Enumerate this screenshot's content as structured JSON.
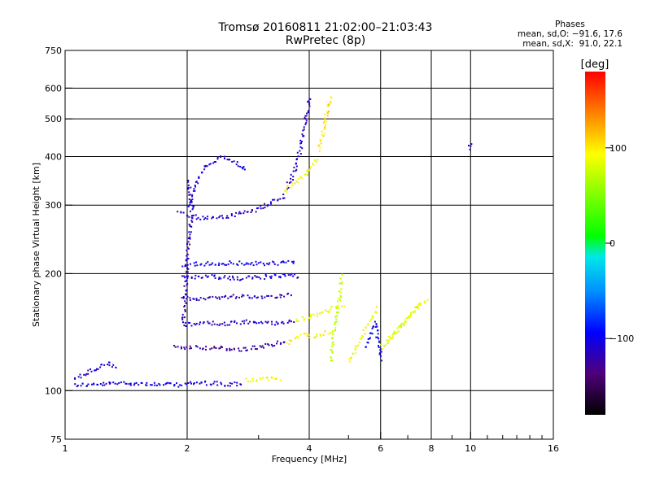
{
  "chart_data": {
    "type": "scatter",
    "title": "Tromsø 20160811 21:02:00–21:03:43",
    "subtitle": "RwPretec (8p)",
    "xlabel": "Frequency [MHz]",
    "ylabel": "Stationary phase Virtual Height [km]",
    "x_scale": "log",
    "y_scale": "log",
    "xlim": [
      1,
      16
    ],
    "ylim": [
      75,
      750
    ],
    "x_ticks": [
      1,
      2,
      4,
      6,
      8,
      10,
      16
    ],
    "x_tick_labels": [
      "1",
      "2",
      "4",
      "6",
      "8",
      "10",
      "16"
    ],
    "x_minor_ticks": [
      3,
      5,
      7,
      9,
      11,
      12,
      13,
      14,
      15
    ],
    "y_ticks": [
      75,
      100,
      200,
      300,
      400,
      500,
      600,
      750
    ],
    "y_tick_labels": [
      "75",
      "100",
      "200",
      "300",
      "400",
      "500",
      "600",
      "750"
    ],
    "grid_x": [
      2,
      4,
      6,
      8,
      10
    ],
    "grid_y": [
      100,
      200,
      300,
      400,
      500,
      600
    ],
    "grid": true,
    "colorbar": {
      "label": "[deg]",
      "range": [
        -180,
        180
      ],
      "ticks": [
        100,
        0,
        -100
      ],
      "tick_labels": [
        "100",
        "0",
        "−100"
      ]
    },
    "phase_stats": {
      "heading": "Phases",
      "line_o": "mean, sd,O: −91.6, 17.6",
      "line_x": "mean, sd,X:  91.0, 22.1"
    },
    "traces": [
      {
        "x": [
          1.05,
          1.2,
          1.35,
          1.5,
          1.7,
          1.9,
          2.1,
          2.3,
          2.5,
          2.75
        ],
        "y": [
          104,
          104,
          105,
          105,
          104,
          104,
          105,
          105,
          104,
          105
        ],
        "phase": -105
      },
      {
        "x": [
          1.05,
          1.12,
          1.2,
          1.28,
          1.35
        ],
        "y": [
          108,
          111,
          115,
          118,
          114
        ],
        "phase": -112
      },
      {
        "x": [
          2.8,
          3.0,
          3.2,
          3.4
        ],
        "y": [
          107,
          107,
          108,
          108
        ],
        "phase": 95
      },
      {
        "x": [
          1.85,
          2.1,
          2.4,
          2.7,
          3.0,
          3.3,
          3.5
        ],
        "y": [
          130,
          130,
          129,
          128,
          130,
          133,
          135
        ],
        "phase": -125
      },
      {
        "x": [
          3.5,
          3.65,
          3.8,
          3.95,
          4.1,
          4.3,
          4.5
        ],
        "y": [
          133,
          136,
          139,
          140,
          138,
          140,
          143
        ],
        "phase": 95
      },
      {
        "x": [
          1.95,
          2.2,
          2.5,
          2.8,
          3.1,
          3.4,
          3.7
        ],
        "y": [
          148,
          150,
          149,
          151,
          150,
          150,
          152
        ],
        "phase": -110
      },
      {
        "x": [
          3.7,
          4.0,
          4.3,
          4.6,
          4.9
        ],
        "y": [
          152,
          156,
          160,
          164,
          166
        ],
        "phase": 90
      },
      {
        "x": [
          1.95,
          2.3,
          2.7,
          3.0,
          3.3,
          3.6
        ],
        "y": [
          173,
          174,
          176,
          175,
          176,
          178
        ],
        "phase": -115
      },
      {
        "x": [
          1.95,
          2.3,
          2.7,
          3.1,
          3.5,
          3.8
        ],
        "y": [
          196,
          197,
          195,
          197,
          199,
          198
        ],
        "phase": -108
      },
      {
        "x": [
          1.95,
          2.3,
          2.6,
          3.0,
          3.4,
          3.7
        ],
        "y": [
          212,
          213,
          214,
          213,
          214,
          215
        ],
        "phase": -100
      },
      {
        "x": [
          1.95,
          1.98,
          2.02,
          2.05,
          2.0
        ],
        "y": [
          150,
          200,
          260,
          300,
          350
        ],
        "phase": -115
      },
      {
        "x": [
          1.9,
          2.1,
          2.3,
          2.6,
          2.9,
          3.2,
          3.5
        ],
        "y": [
          290,
          280,
          279,
          284,
          292,
          305,
          320
        ],
        "phase": -110
      },
      {
        "x": [
          2.0,
          2.1,
          2.2,
          2.4,
          2.6,
          2.8
        ],
        "y": [
          300,
          340,
          380,
          400,
          390,
          370
        ],
        "phase": -108
      },
      {
        "x": [
          3.5,
          3.6,
          3.7,
          3.8,
          3.9,
          4.0
        ],
        "y": [
          335,
          350,
          380,
          430,
          500,
          570
        ],
        "phase": -112
      },
      {
        "x": [
          3.45,
          3.6,
          3.75,
          3.9,
          4.05,
          4.2
        ],
        "y": [
          325,
          340,
          350,
          362,
          380,
          400
        ],
        "phase": 90
      },
      {
        "x": [
          4.2,
          4.3,
          4.4,
          4.5
        ],
        "y": [
          420,
          460,
          520,
          580
        ],
        "phase": 100
      },
      {
        "x": [
          4.5,
          4.6,
          4.7,
          4.8
        ],
        "y": [
          120,
          150,
          170,
          200
        ],
        "phase": 75
      },
      {
        "x": [
          5.0,
          5.3,
          5.6,
          5.9
        ],
        "y": [
          120,
          135,
          150,
          165
        ],
        "phase": 90
      },
      {
        "x": [
          6.0,
          6.4,
          6.8,
          7.2,
          7.5
        ],
        "y": [
          130,
          140,
          150,
          160,
          170
        ],
        "phase": 80
      },
      {
        "x": [
          6.2,
          6.6,
          7.0,
          7.4,
          7.8
        ],
        "y": [
          135,
          145,
          155,
          165,
          175
        ],
        "phase": 90
      },
      {
        "x": [
          5.5,
          5.8,
          6.0
        ],
        "y": [
          130,
          150,
          120
        ],
        "phase": -98
      },
      {
        "x": [
          9.9,
          10.0
        ],
        "y": [
          420,
          440
        ],
        "phase": -112
      }
    ]
  }
}
